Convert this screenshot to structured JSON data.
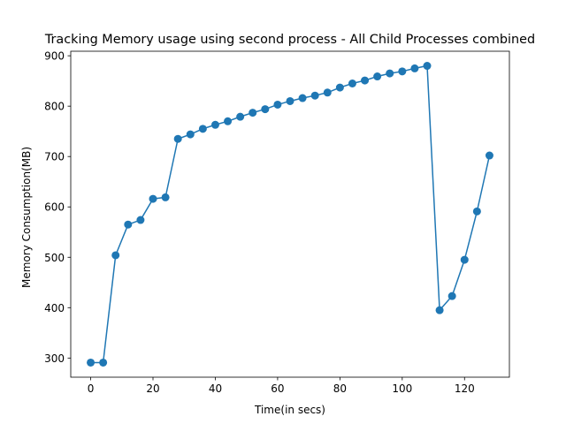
{
  "chart_data": {
    "type": "line",
    "title": "Tracking Memory usage using second process - All Child Processes combined",
    "xlabel": "Time(in secs)",
    "ylabel": "Memory Consumption(MB)",
    "xlim": [
      -6.4,
      134.4
    ],
    "ylim": [
      262,
      909
    ],
    "xticks": [
      0,
      20,
      40,
      60,
      80,
      100,
      120
    ],
    "yticks": [
      300,
      400,
      500,
      600,
      700,
      800,
      900
    ],
    "grid": false,
    "legend": "none",
    "line_color": "#1f77b4",
    "marker": "circle",
    "series": [
      {
        "x": [
          0,
          4,
          8,
          12,
          16,
          20,
          24,
          28,
          32,
          36,
          40,
          44,
          48,
          52,
          56,
          60,
          64,
          68,
          72,
          76,
          80,
          84,
          88,
          92,
          96,
          100,
          104,
          108,
          112,
          116,
          120,
          124,
          128
        ],
        "values": [
          291,
          291,
          504,
          565,
          574,
          616,
          619,
          735,
          744,
          755,
          763,
          770,
          779,
          787,
          794,
          803,
          810,
          816,
          821,
          827,
          837,
          845,
          851,
          859,
          865,
          869,
          875,
          880,
          395,
          423,
          495,
          591,
          702
        ]
      }
    ]
  }
}
